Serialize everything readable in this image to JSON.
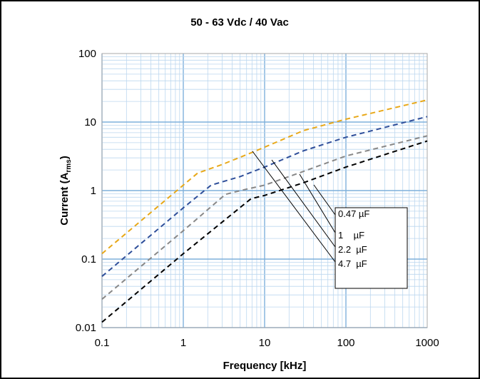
{
  "chart_data": {
    "type": "line",
    "title": "50 - 63 Vdc / 40 Vac",
    "xlabel": "Frequency [kHz]",
    "ylabel": "Current (A",
    "ylabel_sub": "rms",
    "ylabel_close": ")",
    "xscale": "log",
    "yscale": "log",
    "xlim": [
      0.1,
      1000
    ],
    "ylim": [
      0.01,
      100
    ],
    "grid": true,
    "x_ticks": [
      "0.1",
      "1",
      "10",
      "100",
      "1000"
    ],
    "y_ticks": [
      "0.01",
      "0.1",
      "1",
      "10",
      "100"
    ],
    "legend_position": "inside-right",
    "series": [
      {
        "name": "0.47 µF",
        "color": "#e8a818",
        "x": [
          0.1,
          1,
          1.5,
          3,
          7,
          10,
          30,
          100,
          1000
        ],
        "y": [
          0.12,
          1.2,
          1.8,
          2.4,
          3.6,
          4.3,
          7.5,
          11,
          21
        ]
      },
      {
        "name": "1    µF",
        "color": "#2f4f9a",
        "x": [
          0.1,
          1,
          2.2,
          5,
          10,
          30,
          100,
          1000
        ],
        "y": [
          0.056,
          0.56,
          1.2,
          1.6,
          2.2,
          3.8,
          6,
          12
        ]
      },
      {
        "name": "2.2  µF",
        "color": "#888888",
        "x": [
          0.1,
          1,
          3.3,
          6,
          10,
          30,
          100,
          1000
        ],
        "y": [
          0.026,
          0.26,
          0.88,
          1.05,
          1.2,
          1.9,
          3.2,
          6.3
        ]
      },
      {
        "name": "4.7  µF",
        "color": "#000000",
        "x": [
          0.1,
          1,
          6.8,
          10,
          30,
          100,
          1000
        ],
        "y": [
          0.012,
          0.12,
          0.76,
          0.85,
          1.3,
          2.2,
          5.3
        ]
      }
    ]
  }
}
